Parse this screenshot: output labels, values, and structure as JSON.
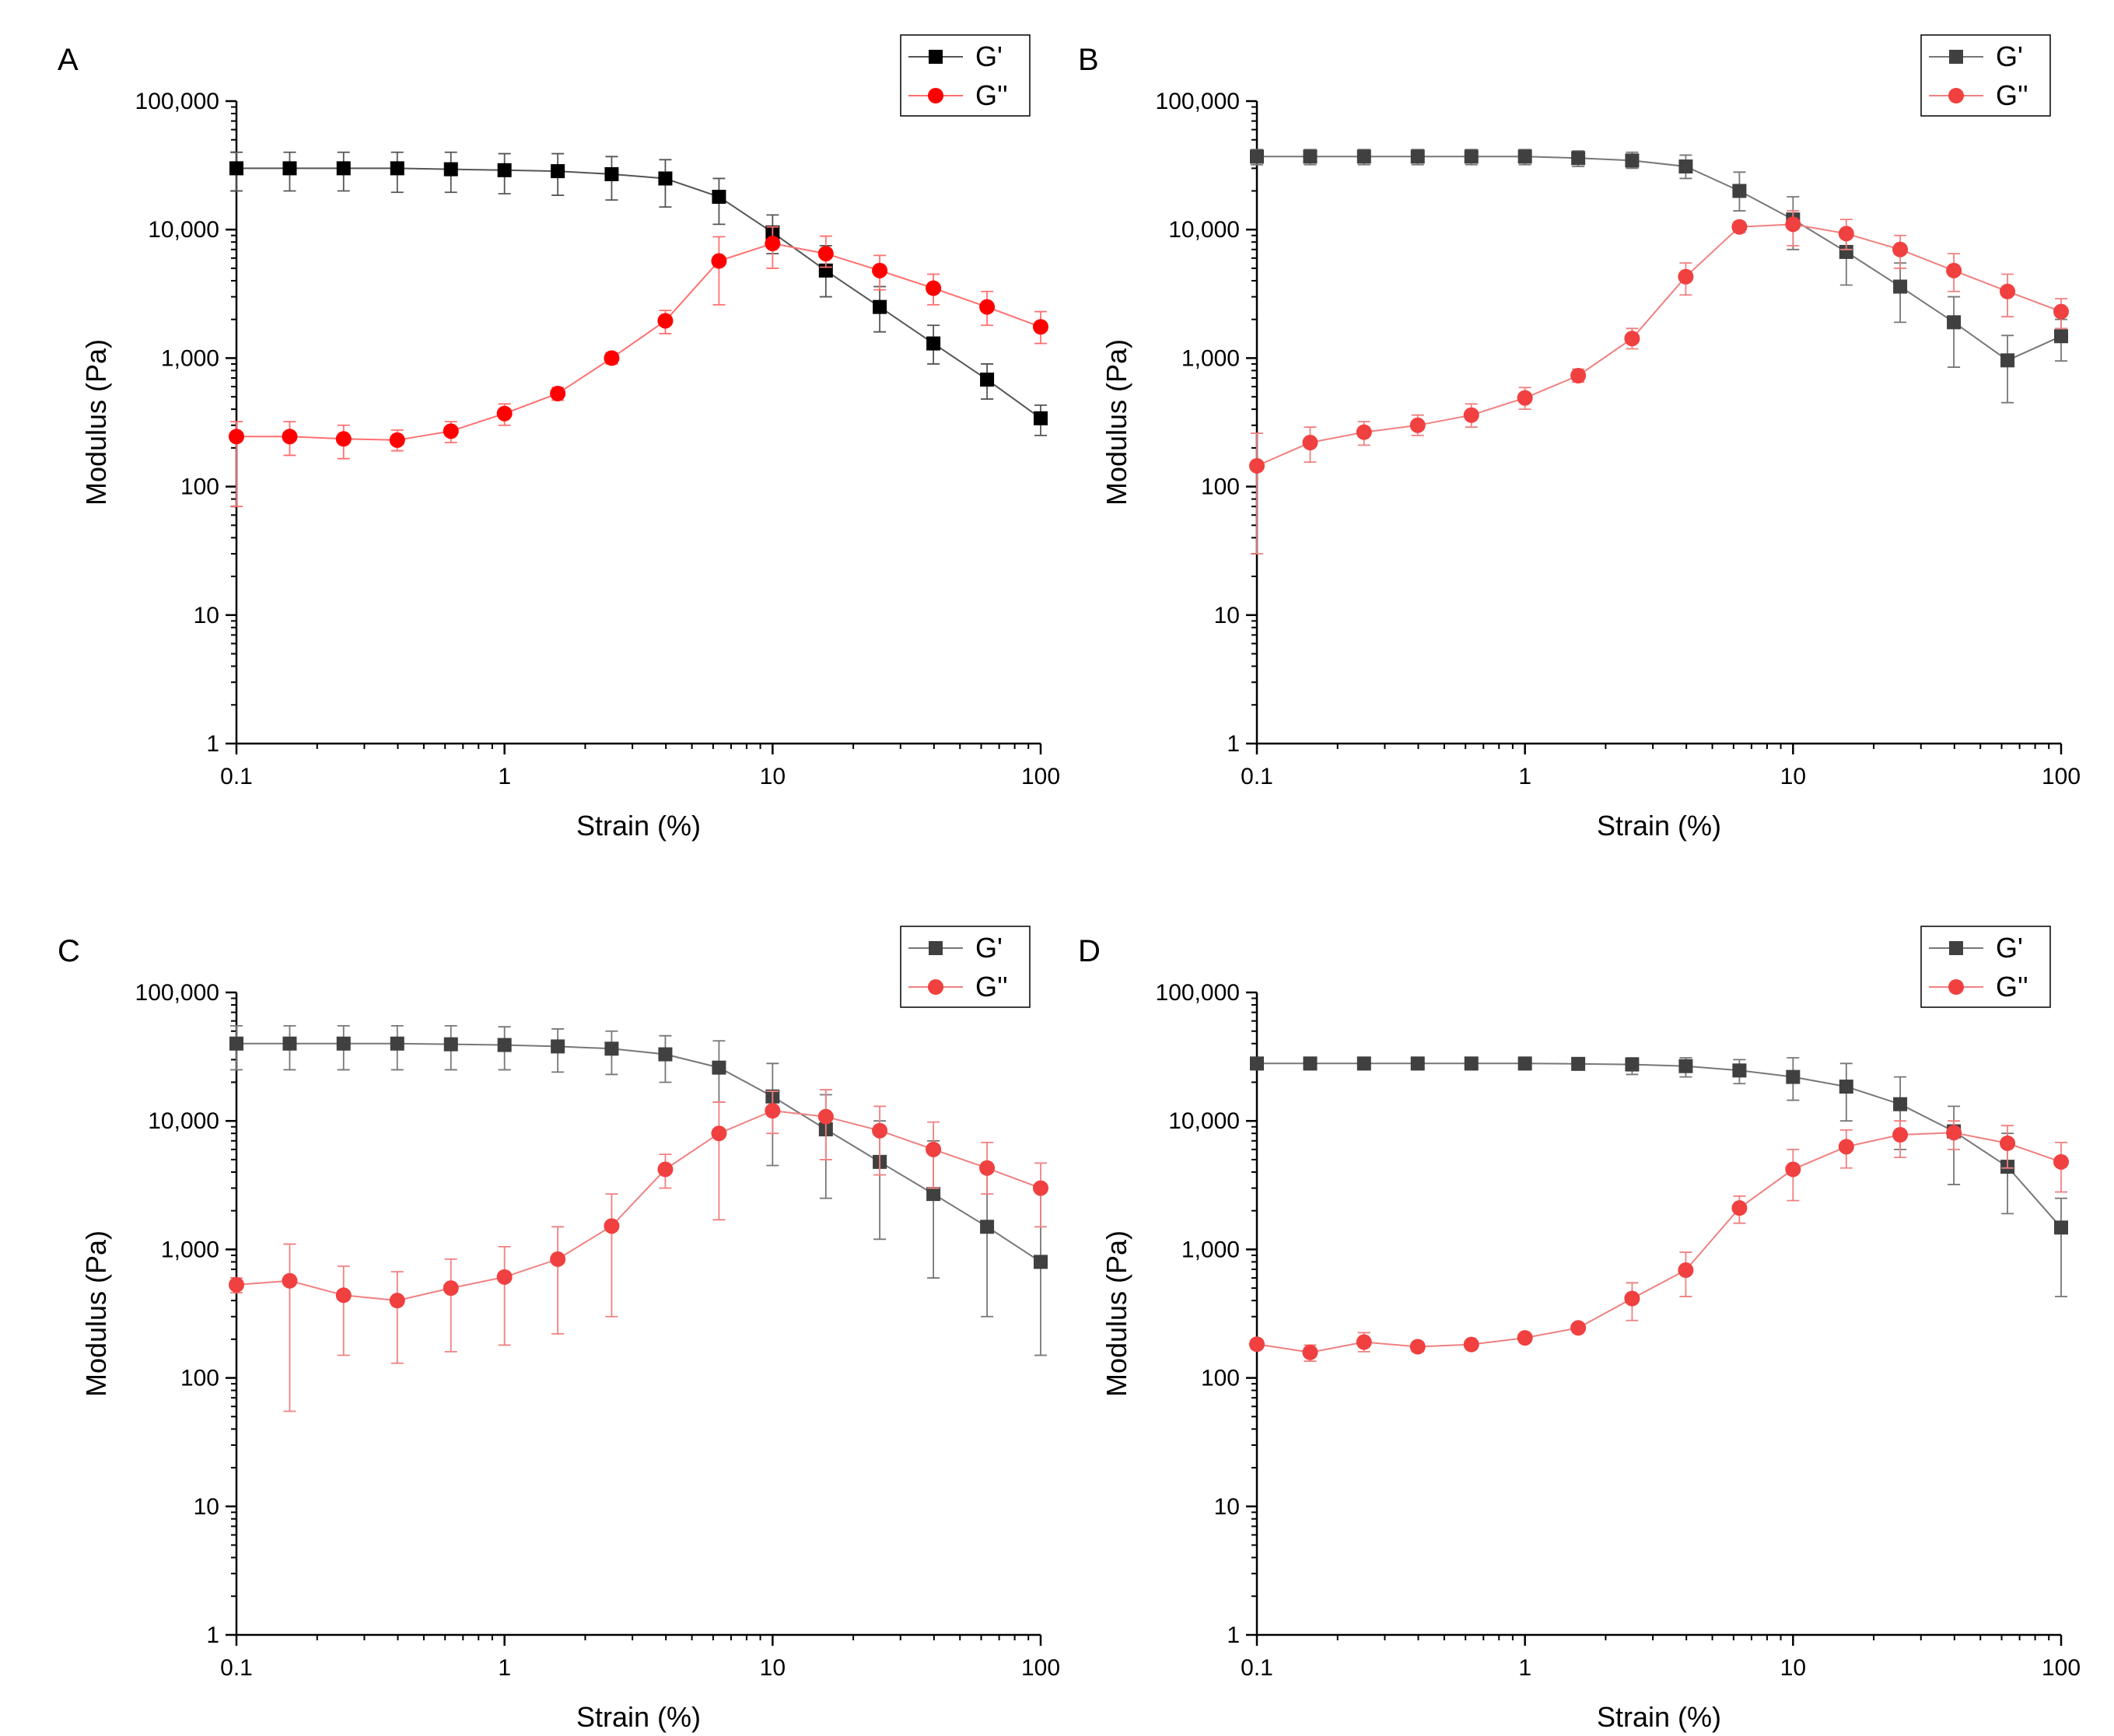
{
  "chart_data": [
    {
      "panel": "A",
      "type": "line",
      "xscale": "log",
      "yscale": "log",
      "xlabel": "Strain (%)",
      "ylabel": "Modulus (Pa)",
      "xlim": [
        0.1,
        100
      ],
      "ylim": [
        1,
        100000
      ],
      "xticks": [
        0.1,
        1,
        10,
        100
      ],
      "xtick_labels": [
        "0.1",
        "1",
        "10",
        "100"
      ],
      "yticks": [
        1,
        10,
        100,
        1000,
        10000,
        100000
      ],
      "ytick_labels": [
        "1",
        "10",
        "100",
        "1,000",
        "10,000",
        "100,000"
      ],
      "legend_position": "top-right",
      "x": [
        0.1,
        0.158,
        0.251,
        0.398,
        0.631,
        1,
        1.58,
        2.51,
        3.98,
        6.31,
        10,
        15.8,
        25.1,
        39.8,
        63.1,
        100
      ],
      "series": [
        {
          "name": "G'",
          "marker": "square",
          "color": "#000000",
          "line_color": "#555555",
          "values": [
            30000,
            30000,
            30000,
            30000,
            29500,
            29000,
            28500,
            27000,
            25000,
            18000,
            9500,
            4800,
            2500,
            1300,
            680,
            340
          ],
          "err_low": [
            20000,
            20000,
            20000,
            19500,
            19500,
            19000,
            18500,
            17000,
            15000,
            11000,
            6500,
            3000,
            1600,
            900,
            480,
            250
          ],
          "err_high": [
            40000,
            40000,
            40000,
            40000,
            40000,
            39000,
            39000,
            37000,
            35000,
            25000,
            13000,
            7500,
            3600,
            1800,
            900,
            430
          ]
        },
        {
          "name": "G''",
          "marker": "circle",
          "color": "#ff0000",
          "line_color": "#ff7070",
          "values": [
            245,
            245,
            235,
            230,
            270,
            370,
            530,
            1000,
            1950,
            5700,
            7800,
            6500,
            4800,
            3500,
            2500,
            1750
          ],
          "err_low": [
            70,
            175,
            165,
            190,
            220,
            300,
            470,
            900,
            1550,
            2600,
            5000,
            5100,
            3400,
            2600,
            1800,
            1300
          ],
          "err_high": [
            320,
            320,
            300,
            275,
            320,
            440,
            590,
            1100,
            2350,
            8800,
            10500,
            8900,
            6300,
            4500,
            3300,
            2300
          ]
        }
      ]
    },
    {
      "panel": "B",
      "type": "line",
      "xscale": "log",
      "yscale": "log",
      "xlabel": "Strain (%)",
      "ylabel": "Modulus (Pa)",
      "xlim": [
        0.1,
        100
      ],
      "ylim": [
        1,
        100000
      ],
      "xticks": [
        0.1,
        1,
        10,
        100
      ],
      "xtick_labels": [
        "0.1",
        "1",
        "10",
        "100"
      ],
      "yticks": [
        1,
        10,
        100,
        1000,
        10000,
        100000
      ],
      "ytick_labels": [
        "1",
        "10",
        "100",
        "1,000",
        "10,000",
        "100,000"
      ],
      "legend_position": "top-right",
      "x": [
        0.1,
        0.158,
        0.251,
        0.398,
        0.631,
        1,
        1.58,
        2.51,
        3.98,
        6.31,
        10,
        15.8,
        25.1,
        39.8,
        63.1,
        100
      ],
      "series": [
        {
          "name": "G'",
          "marker": "square",
          "color": "#404040",
          "line_color": "#777777",
          "values": [
            37000,
            37000,
            37000,
            37000,
            37000,
            37000,
            36000,
            34500,
            31000,
            20000,
            12000,
            6700,
            3600,
            1900,
            960,
            1480
          ],
          "err_low": [
            32000,
            32000,
            32000,
            32000,
            32000,
            32000,
            31000,
            30000,
            25000,
            14000,
            7000,
            3700,
            1900,
            850,
            450,
            950
          ],
          "err_high": [
            42000,
            42000,
            42000,
            42000,
            42000,
            42000,
            41000,
            40000,
            38000,
            28000,
            18000,
            10000,
            5500,
            3000,
            1500,
            2000
          ]
        },
        {
          "name": "G''",
          "marker": "circle",
          "color": "#f04040",
          "line_color": "#f08080",
          "values": [
            145,
            220,
            265,
            300,
            360,
            490,
            730,
            1420,
            4300,
            10500,
            11000,
            9300,
            7000,
            4800,
            3300,
            2300
          ],
          "err_low": [
            30,
            155,
            210,
            250,
            290,
            400,
            650,
            1180,
            3100,
            9500,
            7500,
            7000,
            5000,
            3300,
            2100,
            1700
          ],
          "err_high": [
            260,
            290,
            320,
            360,
            440,
            590,
            820,
            1700,
            5500,
            11500,
            14000,
            12000,
            9000,
            6500,
            4500,
            2900
          ]
        }
      ]
    },
    {
      "panel": "C",
      "type": "line",
      "xscale": "log",
      "yscale": "log",
      "xlabel": "Strain (%)",
      "ylabel": "Modulus (Pa)",
      "xlim": [
        0.1,
        100
      ],
      "ylim": [
        1,
        100000
      ],
      "xticks": [
        0.1,
        1,
        10,
        100
      ],
      "xtick_labels": [
        "0.1",
        "1",
        "10",
        "100"
      ],
      "yticks": [
        1,
        10,
        100,
        1000,
        10000,
        100000
      ],
      "ytick_labels": [
        "1",
        "10",
        "100",
        "1,000",
        "10,000",
        "100,000"
      ],
      "legend_position": "top-right",
      "x": [
        0.1,
        0.158,
        0.251,
        0.398,
        0.631,
        1,
        1.58,
        2.51,
        3.98,
        6.31,
        10,
        15.8,
        25.1,
        39.8,
        63.1,
        100
      ],
      "series": [
        {
          "name": "G'",
          "marker": "square",
          "color": "#404040",
          "line_color": "#777777",
          "values": [
            40000,
            40000,
            40000,
            40000,
            39500,
            39000,
            38000,
            36500,
            33000,
            26000,
            15500,
            8600,
            4800,
            2700,
            1500,
            800
          ],
          "err_low": [
            25000,
            25000,
            25000,
            25000,
            25000,
            25000,
            24000,
            23000,
            20000,
            14000,
            4500,
            2500,
            1200,
            600,
            300,
            150
          ],
          "err_high": [
            55000,
            55000,
            55000,
            55000,
            55000,
            54000,
            52000,
            50000,
            46000,
            42000,
            28000,
            16000,
            10000,
            7000,
            4500,
            3000
          ]
        },
        {
          "name": "G''",
          "marker": "circle",
          "color": "#f04040",
          "line_color": "#f08080",
          "values": [
            530,
            570,
            440,
            400,
            500,
            610,
            840,
            1520,
            4200,
            8000,
            12000,
            10800,
            8400,
            6000,
            4300,
            3000
          ],
          "err_low": [
            460,
            55,
            150,
            130,
            160,
            180,
            220,
            300,
            3000,
            1700,
            8000,
            5000,
            3800,
            3000,
            2700,
            1500
          ],
          "err_high": [
            600,
            1100,
            740,
            670,
            840,
            1050,
            1500,
            2700,
            5500,
            14000,
            17000,
            17500,
            13000,
            9800,
            6800,
            4700
          ]
        }
      ]
    },
    {
      "panel": "D",
      "type": "line",
      "xscale": "log",
      "yscale": "log",
      "xlabel": "Strain (%)",
      "ylabel": "Modulus (Pa)",
      "xlim": [
        0.1,
        100
      ],
      "ylim": [
        1,
        100000
      ],
      "xticks": [
        0.1,
        1,
        10,
        100
      ],
      "xtick_labels": [
        "0.1",
        "1",
        "10",
        "100"
      ],
      "yticks": [
        1,
        10,
        100,
        1000,
        10000,
        100000
      ],
      "ytick_labels": [
        "1",
        "10",
        "100",
        "1,000",
        "10,000",
        "100,000"
      ],
      "legend_position": "top-right",
      "x": [
        0.1,
        0.158,
        0.251,
        0.398,
        0.631,
        1,
        1.58,
        2.51,
        3.98,
        6.31,
        10,
        15.8,
        25.1,
        39.8,
        63.1,
        100
      ],
      "series": [
        {
          "name": "G'",
          "marker": "square",
          "color": "#404040",
          "line_color": "#777777",
          "values": [
            28000,
            28000,
            28000,
            28000,
            28000,
            28000,
            27800,
            27500,
            26700,
            24700,
            22000,
            18500,
            13500,
            8300,
            4400,
            1480
          ],
          "err_low": [
            25000,
            25000,
            25000,
            25000,
            25000,
            25000,
            25000,
            23000,
            22000,
            19500,
            14500,
            10000,
            6000,
            3200,
            1900,
            430
          ],
          "err_high": [
            31000,
            31000,
            31000,
            31000,
            31000,
            31000,
            31000,
            31000,
            31000,
            30000,
            31000,
            28000,
            22000,
            13000,
            8000,
            2500
          ]
        },
        {
          "name": "G''",
          "marker": "circle",
          "color": "#f04040",
          "line_color": "#f08080",
          "values": [
            183,
            158,
            190,
            175,
            182,
            205,
            245,
            415,
            690,
            2100,
            4200,
            6300,
            7800,
            8100,
            6700,
            4800
          ],
          "err_low": [
            168,
            135,
            160,
            160,
            170,
            190,
            230,
            280,
            430,
            1600,
            2400,
            4300,
            5200,
            6000,
            4300,
            2800
          ],
          "err_high": [
            198,
            180,
            225,
            190,
            195,
            220,
            260,
            550,
            950,
            2600,
            6000,
            8500,
            10000,
            10000,
            9200,
            6800
          ]
        }
      ]
    }
  ]
}
